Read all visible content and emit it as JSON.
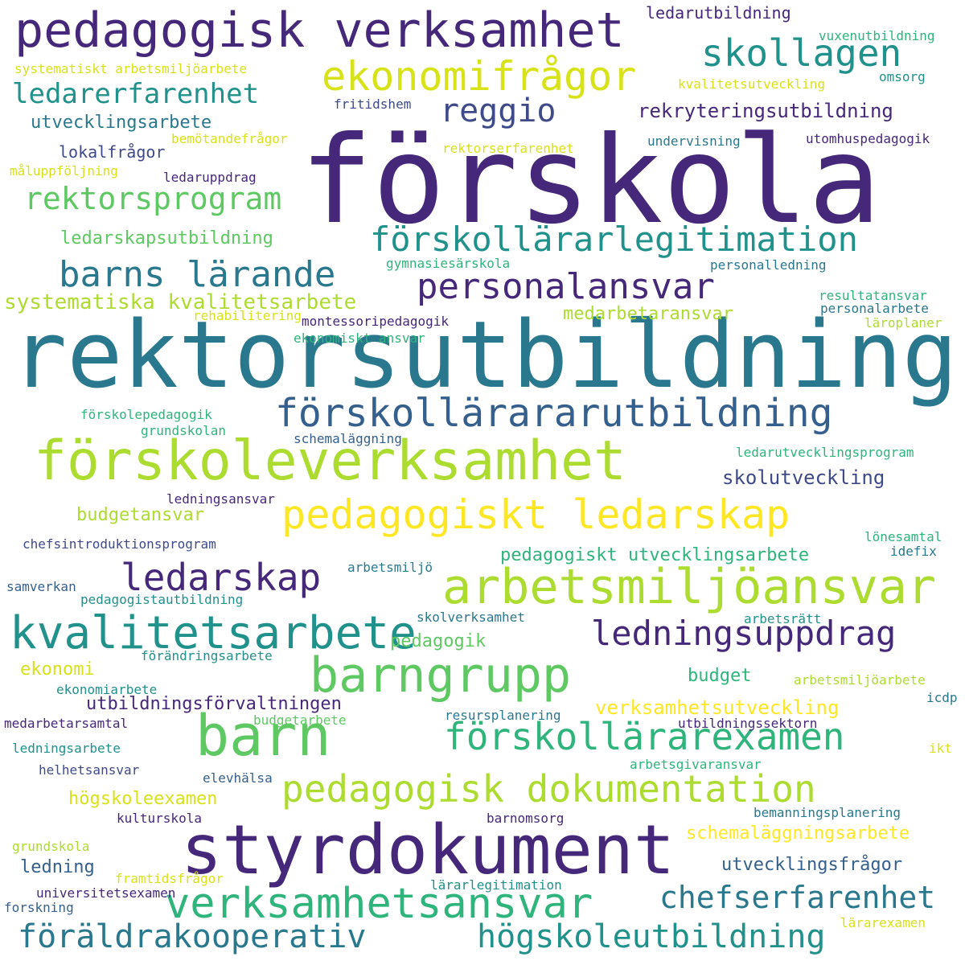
{
  "palette": {
    "deep_purple": "#46287a",
    "indigo": "#3f4a8a",
    "slate_blue": "#355f8d",
    "teal": "#2a788e",
    "sea_green": "#21918c",
    "green": "#2fb47c",
    "lime": "#5ec962",
    "yellow_green": "#addc30",
    "yellow": "#fde725"
  },
  "words": [
    {
      "text": "förskola",
      "color": "#46287a"
    },
    {
      "text": "rektorsutbildning",
      "color": "#2a788e"
    },
    {
      "text": "pedagogisk verksamhet",
      "color": "#46287a"
    },
    {
      "text": "styrdokument",
      "color": "#46287a"
    },
    {
      "text": "förskoleverksamhet",
      "color": "#addc30"
    },
    {
      "text": "barn",
      "color": "#5ec962"
    },
    {
      "text": "arbetsmiljöansvar",
      "color": "#addc30"
    },
    {
      "text": "ekonomifrågor",
      "color": "#d8e219"
    },
    {
      "text": "pedagogiskt ledarskap",
      "color": "#fde725"
    },
    {
      "text": "kvalitetsarbete",
      "color": "#21918c"
    },
    {
      "text": "barngrupp",
      "color": "#5ec962"
    },
    {
      "text": "verksamhetsansvar",
      "color": "#2fb47c"
    },
    {
      "text": "pedagogisk dokumentation",
      "color": "#addc30"
    },
    {
      "text": "förskollärarexamen",
      "color": "#2fb47c"
    },
    {
      "text": "förskollärararutbildning",
      "color": "#355f8d"
    },
    {
      "text": "personalansvar",
      "color": "#46287a"
    },
    {
      "text": "ledningsuppdrag",
      "color": "#46287a"
    },
    {
      "text": "ledarskap",
      "color": "#46287a"
    },
    {
      "text": "skollagen",
      "color": "#21918c"
    },
    {
      "text": "förskollärarlegitimation",
      "color": "#21918c"
    },
    {
      "text": "barns lärande",
      "color": "#2a788e"
    },
    {
      "text": "rektorsprogram",
      "color": "#5ec962"
    },
    {
      "text": "reggio",
      "color": "#3f4a8a"
    },
    {
      "text": "föräldrakooperativ",
      "color": "#2a788e"
    },
    {
      "text": "högskoleutbildning",
      "color": "#21918c"
    },
    {
      "text": "chefserfarenhet",
      "color": "#2a788e"
    },
    {
      "text": "ledarerfarenhet",
      "color": "#21918c"
    },
    {
      "text": "systematiska kvalitetsarbete",
      "color": "#addc30"
    },
    {
      "text": "pedagogiskt utvecklingsarbete",
      "color": "#2fb47c"
    },
    {
      "text": "verksamhetsutveckling",
      "color": "#fde725"
    },
    {
      "text": "rekryteringsutbildning",
      "color": "#46287a"
    },
    {
      "text": "utvecklingsarbete",
      "color": "#2a788e"
    },
    {
      "text": "ledarskapsutbildning",
      "color": "#5ec962"
    },
    {
      "text": "skolutveckling",
      "color": "#3f4a8a"
    },
    {
      "text": "utbildningsförvaltningen",
      "color": "#46287a"
    },
    {
      "text": "budgetansvar",
      "color": "#addc30"
    },
    {
      "text": "medarbetaransvar",
      "color": "#addc30"
    },
    {
      "text": "ekonomi",
      "color": "#d8e219"
    },
    {
      "text": "pedagogik",
      "color": "#5ec962"
    },
    {
      "text": "budget",
      "color": "#2fb47c"
    },
    {
      "text": "högskoleexamen",
      "color": "#d8e219"
    },
    {
      "text": "schemaläggningsarbete",
      "color": "#fde725"
    },
    {
      "text": "utvecklingsfrågor",
      "color": "#355f8d"
    },
    {
      "text": "ledning",
      "color": "#355f8d"
    },
    {
      "text": "lokalfrågor",
      "color": "#3f4a8a"
    },
    {
      "text": "ledarutbildning",
      "color": "#46287a"
    },
    {
      "text": "vuxenutbildning",
      "color": "#2fb47c"
    },
    {
      "text": "kvalitetsutveckling",
      "color": "#d8e219"
    },
    {
      "text": "omsorg",
      "color": "#21918c"
    },
    {
      "text": "systematiskt arbetsmiljöarbete",
      "color": "#d8e219"
    },
    {
      "text": "fritidshem",
      "color": "#3f4a8a"
    },
    {
      "text": "bemötandefrågor",
      "color": "#d8e219"
    },
    {
      "text": "rektorserfarenhet",
      "color": "#d8e219"
    },
    {
      "text": "undervisning",
      "color": "#2a788e"
    },
    {
      "text": "utomhuspedagogik",
      "color": "#46287a"
    },
    {
      "text": "måluppföljning",
      "color": "#d8e219"
    },
    {
      "text": "ledaruppdrag",
      "color": "#46287a"
    },
    {
      "text": "gymnasiesärskola",
      "color": "#2fb47c"
    },
    {
      "text": "personalledning",
      "color": "#2a788e"
    },
    {
      "text": "resultatansvar",
      "color": "#2fb47c"
    },
    {
      "text": "personalarbete",
      "color": "#2a788e"
    },
    {
      "text": "läroplaner",
      "color": "#addc30"
    },
    {
      "text": "rehabilitering",
      "color": "#d8e219"
    },
    {
      "text": "montessoripedagogik",
      "color": "#46287a"
    },
    {
      "text": "ekonomiskt ansvar",
      "color": "#2fb47c"
    },
    {
      "text": "förskolepedagogik",
      "color": "#2fb47c"
    },
    {
      "text": "grundskolan",
      "color": "#2fb47c"
    },
    {
      "text": "schemaläggning",
      "color": "#355f8d"
    },
    {
      "text": "ledarutvecklingsprogram",
      "color": "#2fb47c"
    },
    {
      "text": "ledningsansvar",
      "color": "#46287a"
    },
    {
      "text": "chefsintroduktionsprogram",
      "color": "#3f4a8a"
    },
    {
      "text": "lönesamtal",
      "color": "#2fb47c"
    },
    {
      "text": "idefix",
      "color": "#2a788e"
    },
    {
      "text": "arbetsmiljö",
      "color": "#2a788e"
    },
    {
      "text": "samverkan",
      "color": "#355f8d"
    },
    {
      "text": "pedagogistautbildning",
      "color": "#21918c"
    },
    {
      "text": "skolverksamhet",
      "color": "#2a788e"
    },
    {
      "text": "arbetsrätt",
      "color": "#21918c"
    },
    {
      "text": "förändringsarbete",
      "color": "#21918c"
    },
    {
      "text": "arbetsmiljöarbete",
      "color": "#addc30"
    },
    {
      "text": "ekonomiarbete",
      "color": "#21918c"
    },
    {
      "text": "icdp",
      "color": "#2a788e"
    },
    {
      "text": "medarbetarsamtal",
      "color": "#46287a"
    },
    {
      "text": "budgetarbete",
      "color": "#5ec962"
    },
    {
      "text": "resursplanering",
      "color": "#2a788e"
    },
    {
      "text": "utbildningssektorn",
      "color": "#46287a"
    },
    {
      "text": "ledningsarbete",
      "color": "#21918c"
    },
    {
      "text": "arbetsgivaransvar",
      "color": "#2fb47c"
    },
    {
      "text": "ikt",
      "color": "#d8e219"
    },
    {
      "text": "helhetsansvar",
      "color": "#3f4a8a"
    },
    {
      "text": "elevhälsa",
      "color": "#355f8d"
    },
    {
      "text": "bemanningsplanering",
      "color": "#2a788e"
    },
    {
      "text": "kulturskola",
      "color": "#46287a"
    },
    {
      "text": "barnomsorg",
      "color": "#46287a"
    },
    {
      "text": "grundskola",
      "color": "#addc30"
    },
    {
      "text": "framtidsfrågor",
      "color": "#d8e219"
    },
    {
      "text": "universitetsexamen",
      "color": "#46287a"
    },
    {
      "text": "lärarlegitimation",
      "color": "#21918c"
    },
    {
      "text": "forskning",
      "color": "#355f8d"
    },
    {
      "text": "lärarexamen",
      "color": "#d8e219"
    }
  ]
}
